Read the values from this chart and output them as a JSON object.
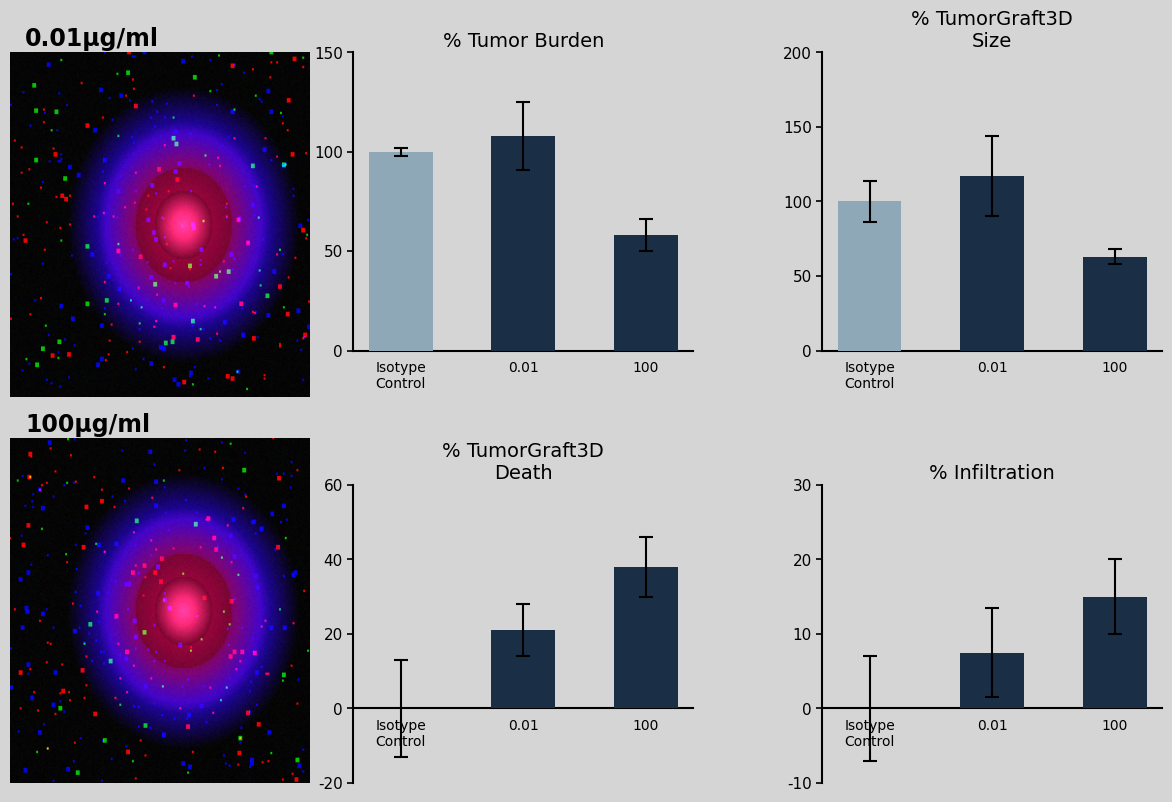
{
  "background_color": "#d5d5d5",
  "title_fontsize": 14,
  "tick_fontsize": 11,
  "charts": [
    {
      "title": "% Tumor Burden",
      "categories": [
        "Isotype\nControl",
        "0.01",
        "100"
      ],
      "values": [
        100,
        108,
        58
      ],
      "errors": [
        2,
        17,
        8
      ],
      "ylim": [
        0,
        150
      ],
      "yticks": [
        0,
        50,
        100,
        150
      ],
      "bar_colors": [
        "#8fa8b8",
        "#1a2e45",
        "#1a2e45"
      ],
      "has_negative": false
    },
    {
      "title": "% TumorGraft3D\nSize",
      "categories": [
        "Isotype\nControl",
        "0.01",
        "100"
      ],
      "values": [
        100,
        117,
        63
      ],
      "errors": [
        14,
        27,
        5
      ],
      "ylim": [
        0,
        200
      ],
      "yticks": [
        0,
        50,
        100,
        150,
        200
      ],
      "bar_colors": [
        "#8fa8b8",
        "#1a2e45",
        "#1a2e45"
      ],
      "has_negative": false
    },
    {
      "title": "% TumorGraft3D\nDeath",
      "categories": [
        "Isotype\nControl",
        "0.01",
        "100"
      ],
      "values": [
        0,
        21,
        38
      ],
      "errors": [
        13,
        7,
        8
      ],
      "ylim": [
        -20,
        60
      ],
      "yticks": [
        -20,
        0,
        20,
        40,
        60
      ],
      "bar_colors": [
        "#8fa8b8",
        "#1a2e45",
        "#1a2e45"
      ],
      "has_negative": true
    },
    {
      "title": "% Infiltration",
      "categories": [
        "Isotype\nControl",
        "0.01",
        "100"
      ],
      "values": [
        0,
        7.5,
        15
      ],
      "errors": [
        7,
        6,
        5
      ],
      "ylim": [
        -10,
        30
      ],
      "yticks": [
        -10,
        0,
        10,
        20,
        30
      ],
      "bar_colors": [
        "#8fa8b8",
        "#1a2e45",
        "#1a2e45"
      ],
      "has_negative": true
    }
  ],
  "image_labels": [
    "0.01μg/ml",
    "100μg/ml"
  ],
  "image_label_fontsize": 17,
  "image_label_fontweight": "bold"
}
